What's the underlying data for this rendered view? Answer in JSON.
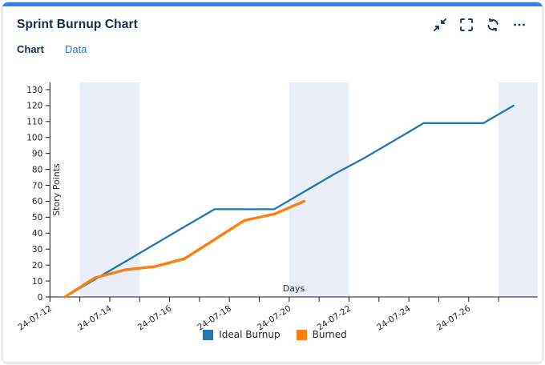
{
  "header": {
    "title": "Sprint Burnup Chart",
    "icons": [
      "collapse-icon",
      "fullscreen-icon",
      "refresh-icon",
      "more-icon"
    ]
  },
  "tabs": [
    {
      "label": "Chart",
      "active": true
    },
    {
      "label": "Data",
      "active": false
    }
  ],
  "theme": {
    "accent": "#2b7fff",
    "title_color": "#172b4d",
    "link_color": "#1d7afc",
    "band_color": "#e9eef8",
    "axis_color": "#262626",
    "card_border": "#d5d9e0"
  },
  "chart_data": {
    "type": "line",
    "title": "",
    "xlabel": "Days",
    "ylabel": "Story Points",
    "ylim": [
      0,
      134.5
    ],
    "yticks": [
      0,
      10,
      20,
      30,
      40,
      50,
      60,
      70,
      80,
      90,
      100,
      110,
      120,
      130
    ],
    "xlim_days": [
      0,
      16.3
    ],
    "grid": false,
    "legend_position": "bottom",
    "xticks": [
      {
        "day": 0,
        "label": "24-07-12"
      },
      {
        "day": 1,
        "label": ""
      },
      {
        "day": 2,
        "label": "24-07-14"
      },
      {
        "day": 3,
        "label": ""
      },
      {
        "day": 4,
        "label": "24-07-16"
      },
      {
        "day": 5,
        "label": ""
      },
      {
        "day": 6,
        "label": "24-07-18"
      },
      {
        "day": 7,
        "label": ""
      },
      {
        "day": 8,
        "label": "24-07-20"
      },
      {
        "day": 9,
        "label": ""
      },
      {
        "day": 10,
        "label": "24-07-22"
      },
      {
        "day": 11,
        "label": ""
      },
      {
        "day": 12,
        "label": "24-07-24"
      },
      {
        "day": 13,
        "label": ""
      },
      {
        "day": 14,
        "label": "24-07-26"
      },
      {
        "day": 15,
        "label": ""
      }
    ],
    "weekend_bands": [
      [
        1,
        3
      ],
      [
        8,
        10
      ],
      [
        15,
        16.3
      ]
    ],
    "series": [
      {
        "name": "Ideal Burnup",
        "color": "#1f77b4",
        "width": 2.3,
        "x_days": [
          0.5,
          1.5,
          2.5,
          3.5,
          4.5,
          5.5,
          6.5,
          7.5,
          8.5,
          9.5,
          10.5,
          11.5,
          12.5,
          13.5,
          14.5,
          15.5
        ],
        "y": [
          0,
          11,
          22,
          33,
          44,
          55,
          55,
          55,
          66,
          77,
          87,
          98,
          109,
          109,
          109,
          120
        ]
      },
      {
        "name": "Burned",
        "color": "#ff7f0e",
        "width": 3.4,
        "x_days": [
          0.5,
          1.5,
          2.5,
          3.5,
          4.5,
          5.5,
          6.5,
          7.5,
          8.5
        ],
        "y": [
          0,
          12,
          17,
          19,
          24,
          36,
          48,
          52,
          60
        ]
      }
    ]
  }
}
